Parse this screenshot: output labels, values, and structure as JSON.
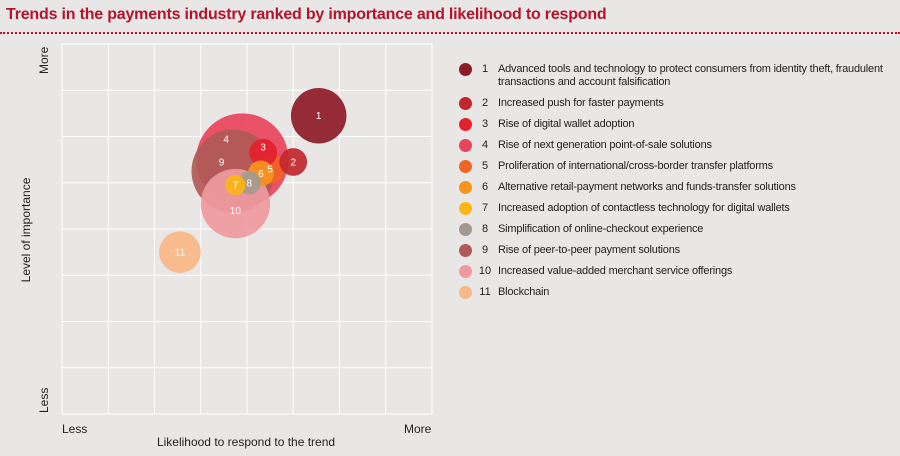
{
  "title": "Trends in the payments industry ranked by importance and likelihood to respond",
  "chart_data": {
    "type": "bubble",
    "xlabel": "Likelihood to respond to the trend",
    "ylabel": "Level of importance",
    "x_tick_labels": [
      "Less",
      "More"
    ],
    "y_tick_labels": [
      "Less",
      "More"
    ],
    "xlim": [
      0,
      8
    ],
    "ylim": [
      0,
      8
    ],
    "grid": true,
    "legend_position": "right",
    "series": [
      {
        "id": 1,
        "label": "1",
        "name": "Advanced tools and technology to protect consumers from identity theft, fraudulent transactions and account falsification",
        "x": 5.55,
        "y": 6.45,
        "size": 0.6,
        "color": "#8c1b27"
      },
      {
        "id": 2,
        "label": "2",
        "name": "Increased push for faster payments",
        "x": 5.0,
        "y": 5.45,
        "size": 0.3,
        "color": "#c1272d"
      },
      {
        "id": 3,
        "label": "3",
        "name": "Rise of digital wallet adoption",
        "x": 4.35,
        "y": 5.65,
        "size": 0.3,
        "color": "#e4202e"
      },
      {
        "id": 4,
        "label": "4",
        "name": "Rise of next generation point-of-sale solutions",
        "x": 3.9,
        "y": 5.5,
        "size": 1.0,
        "color": "#e8445c"
      },
      {
        "id": 5,
        "label": "5",
        "name": "Proliferation of international/cross-border transfer platforms",
        "x": 4.5,
        "y": 5.3,
        "size": 0.32,
        "color": "#f06424"
      },
      {
        "id": 6,
        "label": "6",
        "name": "Alternative retail-payment networks and funds-transfer solutions",
        "x": 4.3,
        "y": 5.2,
        "size": 0.28,
        "color": "#f7941d"
      },
      {
        "id": 7,
        "label": "7",
        "name": "Increased adoption of contactless technology for digital wallets",
        "x": 3.75,
        "y": 4.95,
        "size": 0.22,
        "color": "#fbb515"
      },
      {
        "id": 8,
        "label": "8",
        "name": "Simplification of online-checkout experience",
        "x": 4.05,
        "y": 5.0,
        "size": 0.25,
        "color": "#a29a90"
      },
      {
        "id": 9,
        "label": "9",
        "name": "Rise of peer-to-peer payment solutions",
        "x": 3.7,
        "y": 5.25,
        "size": 0.9,
        "color": "#b05a57"
      },
      {
        "id": 10,
        "label": "10",
        "name": "Increased value-added merchant service offerings",
        "x": 3.75,
        "y": 4.55,
        "size": 0.75,
        "color": "#ef9a9f"
      },
      {
        "id": 11,
        "label": "11",
        "name": "Blockchain",
        "x": 2.55,
        "y": 3.5,
        "size": 0.45,
        "color": "#f8b787"
      }
    ]
  }
}
